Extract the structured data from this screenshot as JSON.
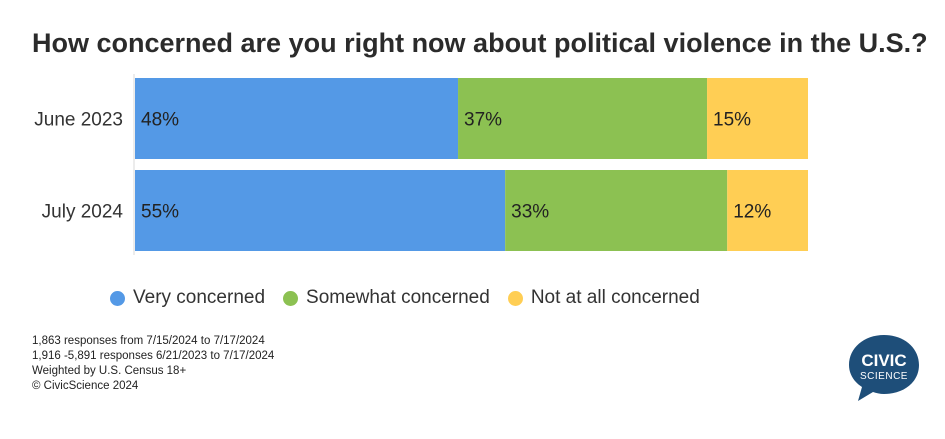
{
  "title": "How concerned are you right now about political violence in the U.S.?",
  "chart_data": {
    "type": "bar",
    "orientation": "horizontal",
    "stacked": true,
    "categories": [
      "June 2023",
      "July 2024"
    ],
    "series": [
      {
        "name": "Very concerned",
        "values": [
          48,
          55
        ],
        "labels": [
          "48%",
          "55%"
        ],
        "color": "#5499e6"
      },
      {
        "name": "Somewhat concerned",
        "values": [
          37,
          33
        ],
        "labels": [
          "37%",
          "33%"
        ],
        "color": "#8cc152"
      },
      {
        "name": "Not at all concerned",
        "values": [
          15,
          12
        ],
        "labels": [
          "15%",
          "12%"
        ],
        "color": "#ffce54"
      }
    ],
    "xlim": [
      0,
      100
    ],
    "grid": false,
    "legend_position": "bottom"
  },
  "footnotes": [
    "1,863 responses  from 7/15/2024 to 7/17/2024",
    "1,916 -5,891 responses 6/21/2023 to 7/17/2024",
    "Weighted by U.S. Census 18+",
    "© CivicScience 2024"
  ],
  "logo": {
    "line1": "CIVIC",
    "line2": "SCIENCE",
    "color": "#1e4e79"
  }
}
